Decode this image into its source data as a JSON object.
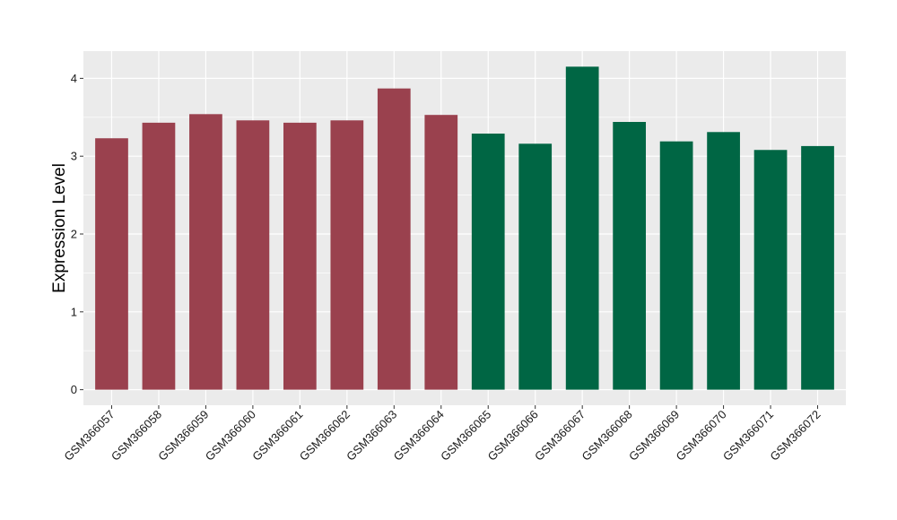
{
  "chart_data": {
    "type": "bar",
    "title": "",
    "xlabel": "",
    "ylabel": "Expression Level",
    "ylim": [
      -0.2,
      4.35
    ],
    "yticks": [
      0,
      1,
      2,
      3,
      4
    ],
    "grid": true,
    "legend": "none",
    "categories": [
      "GSM366057",
      "GSM366058",
      "GSM366059",
      "GSM366060",
      "GSM366061",
      "GSM366062",
      "GSM366063",
      "GSM366064",
      "GSM366065",
      "GSM366066",
      "GSM366067",
      "GSM366068",
      "GSM366069",
      "GSM366070",
      "GSM366071",
      "GSM366072"
    ],
    "values": [
      3.23,
      3.43,
      3.54,
      3.46,
      3.43,
      3.46,
      3.87,
      3.53,
      3.29,
      3.16,
      4.15,
      3.44,
      3.19,
      3.31,
      3.08,
      3.13
    ],
    "bar_colors": [
      "#9a414e",
      "#9a414e",
      "#9a414e",
      "#9a414e",
      "#9a414e",
      "#9a414e",
      "#9a414e",
      "#9a414e",
      "#006644",
      "#006644",
      "#006644",
      "#006644",
      "#006644",
      "#006644",
      "#006644",
      "#006644"
    ],
    "panel_background": "#ebebeb",
    "gridline_color": "#ffffff"
  }
}
